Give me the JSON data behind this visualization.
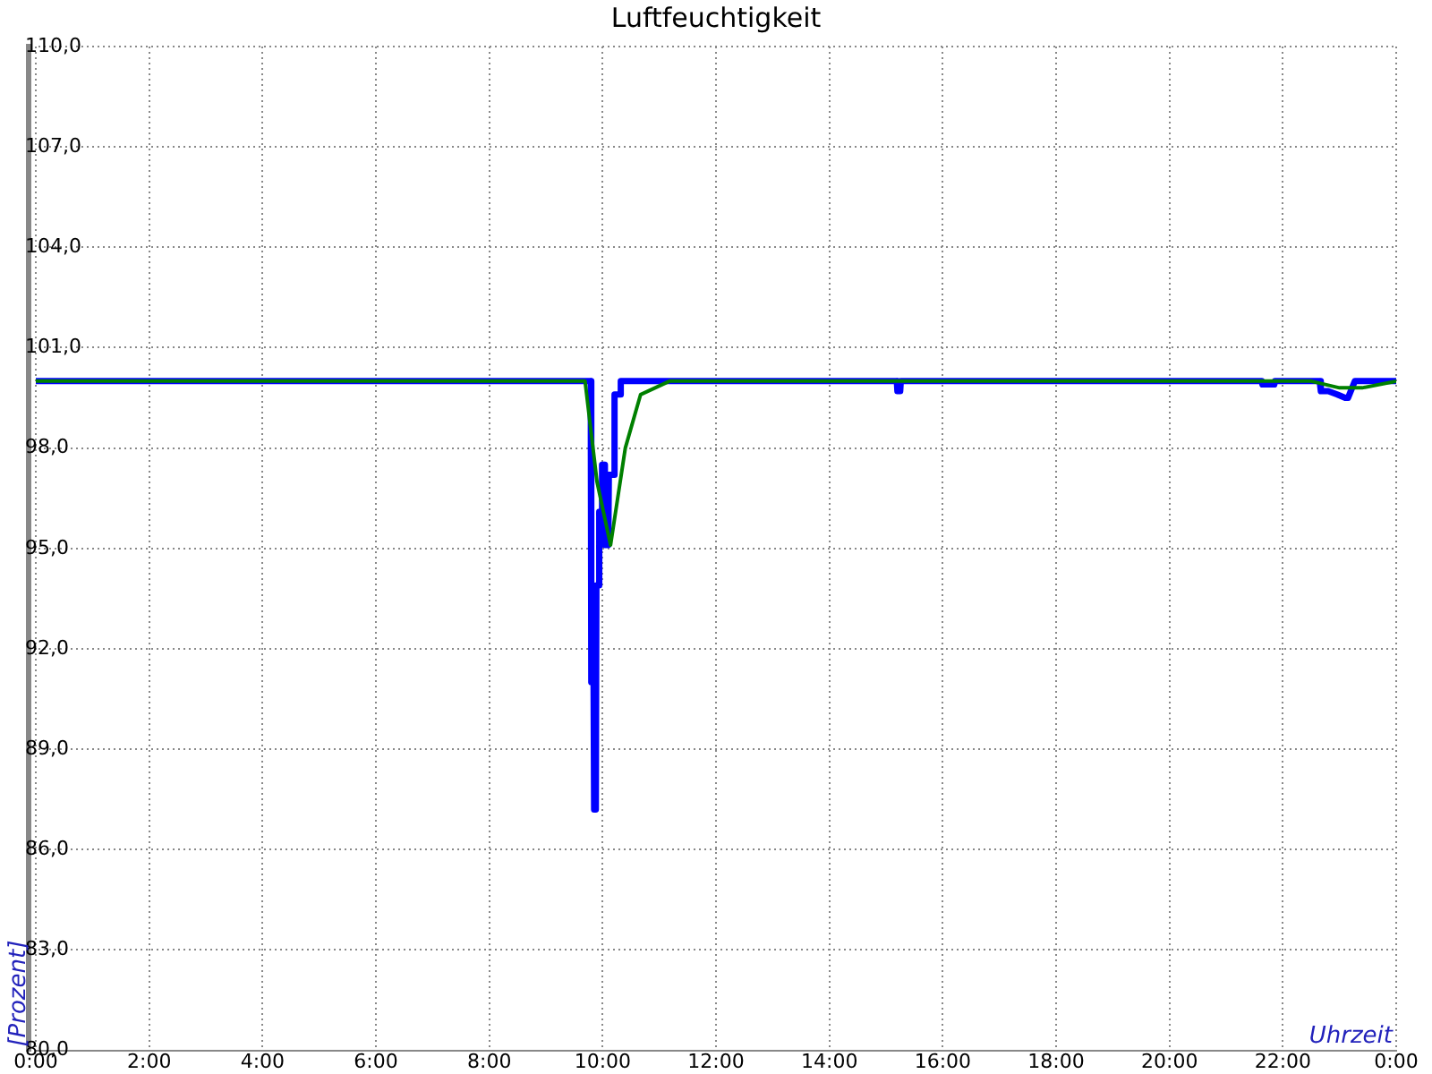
{
  "chart_data": {
    "type": "line",
    "title": "Luftfeuchtigkeit",
    "xlabel": "Uhrzeit",
    "ylabel": "[Prozent]",
    "xlim": [
      0,
      24
    ],
    "xticks": [
      {
        "value": 0,
        "label": "0:00"
      },
      {
        "value": 2,
        "label": "2:00"
      },
      {
        "value": 4,
        "label": "4:00"
      },
      {
        "value": 6,
        "label": "6:00"
      },
      {
        "value": 8,
        "label": "8:00"
      },
      {
        "value": 10,
        "label": "10:00"
      },
      {
        "value": 12,
        "label": "12:00"
      },
      {
        "value": 14,
        "label": "14:00"
      },
      {
        "value": 16,
        "label": "16:00"
      },
      {
        "value": 18,
        "label": "18:00"
      },
      {
        "value": 20,
        "label": "20:00"
      },
      {
        "value": 22,
        "label": "22:00"
      },
      {
        "value": 24,
        "label": "0:00"
      }
    ],
    "ylim": [
      80,
      110
    ],
    "yticks": [
      {
        "value": 80,
        "label": "80,0"
      },
      {
        "value": 83,
        "label": "83,0"
      },
      {
        "value": 86,
        "label": "86,0"
      },
      {
        "value": 89,
        "label": "89,0"
      },
      {
        "value": 92,
        "label": "92,0"
      },
      {
        "value": 95,
        "label": "95,0"
      },
      {
        "value": 98,
        "label": "98,0"
      },
      {
        "value": 101,
        "label": "101,0"
      },
      {
        "value": 104,
        "label": "104,0"
      },
      {
        "value": 107,
        "label": "107,0"
      },
      {
        "value": 110,
        "label": "110,0"
      }
    ],
    "grid": true,
    "legend": false,
    "marker": "none",
    "line_style": "solid",
    "series": [
      {
        "color": "#0000ff",
        "x": [
          0,
          9.79,
          9.8,
          9.84,
          9.85,
          9.88,
          9.89,
          9.93,
          9.94,
          9.98,
          9.99,
          10.02,
          10.04,
          10.1,
          10.11,
          10.2,
          10.21,
          10.3,
          10.32,
          15.19,
          15.2,
          15.25,
          15.26,
          21.63,
          21.64,
          21.85,
          21.86,
          22.65,
          22.67,
          22.8,
          22.96,
          23.1,
          23.15,
          23.27,
          24
        ],
        "values": [
          100,
          100,
          91,
          91,
          87.2,
          87.2,
          93.9,
          93.9,
          96.1,
          96.1,
          97.5,
          97.5,
          95.1,
          95.1,
          97.2,
          97.2,
          99.6,
          99.6,
          100,
          100,
          99.7,
          99.7,
          100,
          100,
          99.9,
          99.9,
          100,
          100,
          99.7,
          99.7,
          99.6,
          99.5,
          99.5,
          100,
          100
        ]
      },
      {
        "color": "#008000",
        "x": [
          0,
          9.69,
          9.9,
          10.14,
          10.4,
          10.67,
          11.18,
          22.5,
          23,
          23.4,
          24
        ],
        "values": [
          100,
          100,
          97,
          95.1,
          98,
          99.6,
          100,
          100,
          99.8,
          99.8,
          100
        ]
      }
    ]
  }
}
